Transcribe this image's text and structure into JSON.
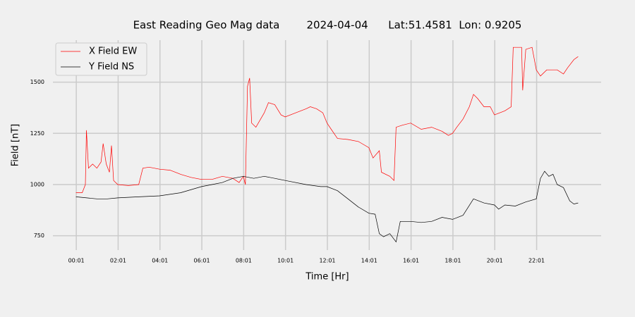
{
  "chart_data": {
    "type": "line",
    "title": "East Reading Geo Mag data        2024-04-04      Lat:51.4581  Lon: 0.9205",
    "xlabel": "Time  [Hr]",
    "ylabel": "Field  [nT]",
    "xlim": [
      -1.1,
      25.1
    ],
    "ylim": [
      680,
      1705
    ],
    "xticks": [
      {
        "value": 0.017,
        "label": "00:01"
      },
      {
        "value": 2.017,
        "label": "02:01"
      },
      {
        "value": 4.017,
        "label": "04:01"
      },
      {
        "value": 6.017,
        "label": "06:01"
      },
      {
        "value": 8.017,
        "label": "08:01"
      },
      {
        "value": 10.017,
        "label": "10:01"
      },
      {
        "value": 12.017,
        "label": "12:01"
      },
      {
        "value": 14.017,
        "label": "14:01"
      },
      {
        "value": 16.017,
        "label": "16:01"
      },
      {
        "value": 18.017,
        "label": "18:01"
      },
      {
        "value": 20.017,
        "label": "20:01"
      },
      {
        "value": 22.017,
        "label": "22:01"
      }
    ],
    "yticks": [
      750,
      1000,
      1250,
      1500
    ],
    "grid": true,
    "legend": "upper left",
    "series": [
      {
        "name": "X Field EW",
        "color": "#ff0000",
        "x": [
          0,
          0.3,
          0.45,
          0.5,
          0.6,
          0.8,
          1.0,
          1.2,
          1.3,
          1.45,
          1.6,
          1.7,
          1.8,
          2.0,
          2.5,
          3.0,
          3.2,
          3.5,
          4,
          4.5,
          5,
          5.5,
          6,
          6.5,
          7,
          7.5,
          7.8,
          8.0,
          8.1,
          8.2,
          8.3,
          8.4,
          8.6,
          9.0,
          9.2,
          9.5,
          9.8,
          10.0,
          10.5,
          11,
          11.2,
          11.5,
          11.8,
          12,
          12.2,
          12.5,
          13,
          13.5,
          14,
          14.2,
          14.5,
          14.6,
          15,
          15.2,
          15.3,
          15.6,
          16,
          16.5,
          17,
          17.5,
          17.8,
          18,
          18.2,
          18.5,
          18.8,
          19.0,
          19.2,
          19.5,
          19.8,
          20.0,
          20.5,
          20.8,
          20.9,
          21.3,
          21.35,
          21.5,
          21.8,
          22.0,
          22.2,
          22.5,
          23.0,
          23.3,
          23.5,
          23.8,
          24
        ],
        "values": [
          960,
          960,
          1000,
          1265,
          1080,
          1100,
          1080,
          1110,
          1200,
          1100,
          1060,
          1190,
          1020,
          1000,
          995,
          1000,
          1080,
          1085,
          1075,
          1070,
          1050,
          1035,
          1025,
          1025,
          1040,
          1030,
          1010,
          1040,
          1000,
          1480,
          1520,
          1300,
          1280,
          1350,
          1400,
          1390,
          1340,
          1330,
          1350,
          1370,
          1380,
          1370,
          1350,
          1300,
          1270,
          1225,
          1220,
          1210,
          1180,
          1130,
          1165,
          1060,
          1040,
          1020,
          1280,
          1290,
          1300,
          1270,
          1280,
          1260,
          1240,
          1250,
          1280,
          1320,
          1380,
          1440,
          1420,
          1380,
          1380,
          1340,
          1360,
          1380,
          1670,
          1670,
          1460,
          1660,
          1670,
          1560,
          1530,
          1560,
          1560,
          1540,
          1570,
          1610,
          1625
        ]
      },
      {
        "name": "Y Field NS",
        "color": "#000000",
        "x": [
          0,
          1,
          1.5,
          2,
          3,
          4,
          5,
          6,
          6.5,
          7,
          7.5,
          8,
          8.5,
          9,
          9.5,
          10,
          11,
          11.7,
          12,
          12.5,
          13,
          13.5,
          14,
          14.3,
          14.5,
          14.7,
          15,
          15.3,
          15.5,
          16,
          16.5,
          17,
          17.5,
          18,
          18.5,
          19,
          19.5,
          20,
          20.2,
          20.5,
          21,
          21.5,
          22,
          22.2,
          22.4,
          22.6,
          22.8,
          23,
          23.3,
          23.6,
          23.8,
          24
        ],
        "values": [
          940,
          930,
          930,
          935,
          940,
          945,
          960,
          990,
          1000,
          1010,
          1030,
          1040,
          1030,
          1040,
          1030,
          1020,
          1000,
          990,
          990,
          970,
          930,
          890,
          860,
          855,
          760,
          745,
          760,
          720,
          820,
          820,
          815,
          820,
          840,
          830,
          850,
          930,
          910,
          900,
          880,
          900,
          895,
          915,
          930,
          1030,
          1065,
          1040,
          1050,
          1000,
          985,
          920,
          905,
          910
        ]
      }
    ]
  }
}
